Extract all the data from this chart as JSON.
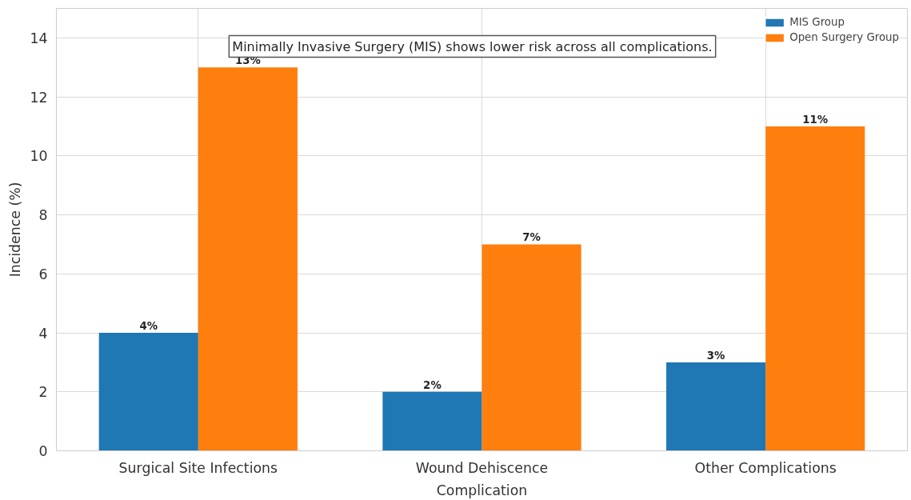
{
  "chart_data": {
    "type": "bar",
    "xlabel": "Complication",
    "ylabel": "Incidence (%)",
    "categories": [
      "Surgical Site Infections",
      "Wound Dehiscence",
      "Other Complications"
    ],
    "series": [
      {
        "name": "MIS Group",
        "color": "#1f77b4",
        "values": [
          4,
          2,
          3
        ],
        "value_labels": [
          "4%",
          "2%",
          "3%"
        ]
      },
      {
        "name": "Open Surgery Group",
        "color": "#ff7f0e",
        "values": [
          13,
          7,
          11
        ],
        "value_labels": [
          "13%",
          "7%",
          "11%"
        ]
      }
    ],
    "ylim": [
      0,
      15
    ],
    "yticks": [
      0,
      2,
      4,
      6,
      8,
      10,
      12,
      14
    ],
    "grid": true,
    "legend": "top right",
    "annotations": [
      "Minimally Invasive Surgery (MIS) shows lower risk across all complications."
    ]
  }
}
